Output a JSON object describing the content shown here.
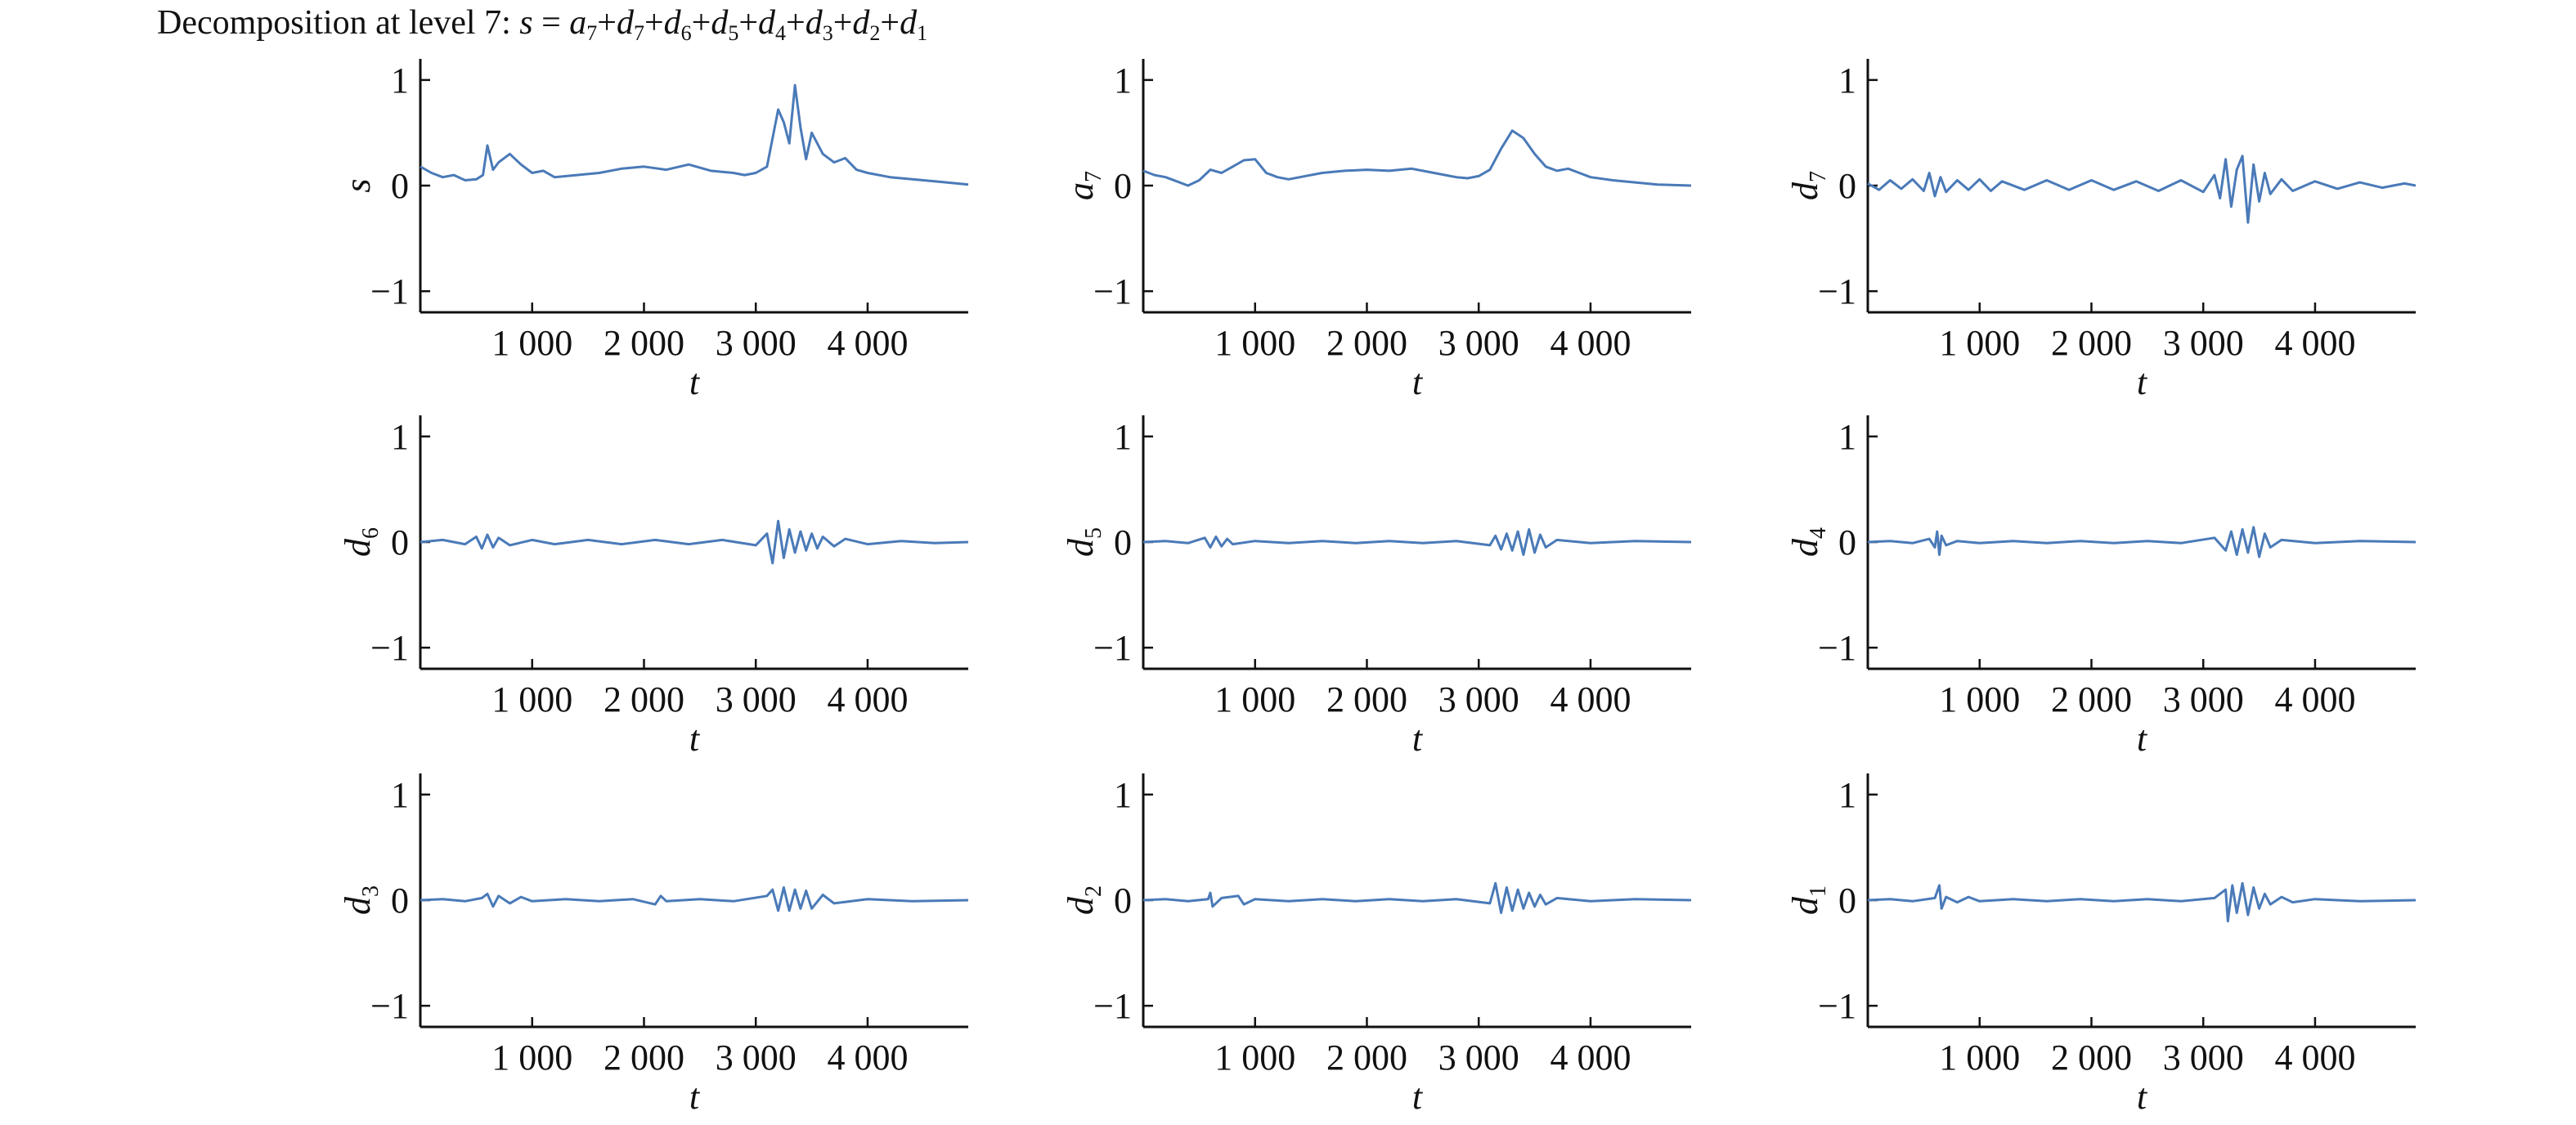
{
  "title": {
    "prefix": "Decomposition at level 7: ",
    "parts": [
      {
        "sym": "s",
        "sub": ""
      },
      {
        "text": " = "
      },
      {
        "sym": "a",
        "sub": "7"
      },
      {
        "text": "+"
      },
      {
        "sym": "d",
        "sub": "7"
      },
      {
        "text": "+"
      },
      {
        "sym": "d",
        "sub": "6"
      },
      {
        "text": "+"
      },
      {
        "sym": "d",
        "sub": "5"
      },
      {
        "text": "+"
      },
      {
        "sym": "d",
        "sub": "4"
      },
      {
        "text": "+"
      },
      {
        "sym": "d",
        "sub": "3"
      },
      {
        "text": "+"
      },
      {
        "sym": "d",
        "sub": "2"
      },
      {
        "text": "+"
      },
      {
        "sym": "d",
        "sub": "1"
      }
    ]
  },
  "colors": {
    "line": "#4a7ab8",
    "axis": "#111111"
  },
  "chart_data": [
    {
      "type": "line",
      "ylabel": "s",
      "ylabel_sub": "",
      "xlabel": "t",
      "xlim": [
        0,
        4900
      ],
      "ylim": [
        -1.2,
        1.2
      ],
      "xticks": [
        1000,
        2000,
        3000,
        4000
      ],
      "xtick_labels": [
        "1 000",
        "2 000",
        "3 000",
        "4 000"
      ],
      "yticks": [
        -1,
        0,
        1
      ],
      "ytick_labels": [
        "−1",
        "0",
        "1"
      ],
      "x": [
        0,
        100,
        200,
        300,
        400,
        500,
        560,
        600,
        650,
        700,
        800,
        900,
        1000,
        1100,
        1200,
        1400,
        1600,
        1800,
        2000,
        2200,
        2400,
        2600,
        2800,
        2900,
        3000,
        3100,
        3200,
        3250,
        3300,
        3350,
        3400,
        3450,
        3500,
        3600,
        3700,
        3800,
        3900,
        4000,
        4200,
        4400,
        4600,
        4800,
        4900
      ],
      "y": [
        0.18,
        0.12,
        0.08,
        0.1,
        0.05,
        0.06,
        0.1,
        0.38,
        0.15,
        0.22,
        0.3,
        0.2,
        0.12,
        0.14,
        0.08,
        0.1,
        0.12,
        0.16,
        0.18,
        0.15,
        0.2,
        0.14,
        0.12,
        0.1,
        0.12,
        0.18,
        0.72,
        0.6,
        0.4,
        0.95,
        0.55,
        0.25,
        0.5,
        0.3,
        0.22,
        0.26,
        0.15,
        0.12,
        0.08,
        0.06,
        0.04,
        0.02,
        0.01
      ]
    },
    {
      "type": "line",
      "ylabel": "a",
      "ylabel_sub": "7",
      "xlabel": "t",
      "xlim": [
        0,
        4900
      ],
      "ylim": [
        -1.2,
        1.2
      ],
      "xticks": [
        1000,
        2000,
        3000,
        4000
      ],
      "xtick_labels": [
        "1 000",
        "2 000",
        "3 000",
        "4 000"
      ],
      "yticks": [
        -1,
        0,
        1
      ],
      "ytick_labels": [
        "−1",
        "0",
        "1"
      ],
      "x": [
        0,
        100,
        200,
        300,
        400,
        500,
        600,
        700,
        800,
        900,
        1000,
        1100,
        1200,
        1300,
        1400,
        1600,
        1800,
        2000,
        2200,
        2400,
        2600,
        2700,
        2800,
        2900,
        3000,
        3100,
        3200,
        3300,
        3400,
        3500,
        3600,
        3700,
        3800,
        3900,
        4000,
        4200,
        4400,
        4600,
        4900
      ],
      "y": [
        0.14,
        0.1,
        0.08,
        0.04,
        0.0,
        0.05,
        0.15,
        0.12,
        0.18,
        0.24,
        0.25,
        0.12,
        0.08,
        0.06,
        0.08,
        0.12,
        0.14,
        0.15,
        0.14,
        0.16,
        0.12,
        0.1,
        0.08,
        0.07,
        0.09,
        0.15,
        0.35,
        0.52,
        0.45,
        0.3,
        0.18,
        0.14,
        0.16,
        0.12,
        0.08,
        0.05,
        0.03,
        0.01,
        0.0
      ]
    },
    {
      "type": "line",
      "ylabel": "d",
      "ylabel_sub": "7",
      "xlabel": "t",
      "xlim": [
        0,
        4900
      ],
      "ylim": [
        -1.2,
        1.2
      ],
      "xticks": [
        1000,
        2000,
        3000,
        4000
      ],
      "xtick_labels": [
        "1 000",
        "2 000",
        "3 000",
        "4 000"
      ],
      "yticks": [
        -1,
        0,
        1
      ],
      "ytick_labels": [
        "−1",
        "0",
        "1"
      ],
      "x": [
        0,
        100,
        200,
        300,
        400,
        500,
        550,
        600,
        650,
        700,
        800,
        900,
        1000,
        1100,
        1200,
        1400,
        1600,
        1800,
        2000,
        2200,
        2400,
        2600,
        2800,
        3000,
        3100,
        3150,
        3200,
        3250,
        3300,
        3350,
        3400,
        3450,
        3500,
        3550,
        3600,
        3700,
        3800,
        4000,
        4200,
        4400,
        4600,
        4800,
        4900
      ],
      "y": [
        0.02,
        -0.04,
        0.05,
        -0.03,
        0.06,
        -0.05,
        0.12,
        -0.1,
        0.08,
        -0.06,
        0.05,
        -0.04,
        0.06,
        -0.05,
        0.04,
        -0.04,
        0.05,
        -0.04,
        0.05,
        -0.04,
        0.04,
        -0.05,
        0.05,
        -0.06,
        0.1,
        -0.12,
        0.25,
        -0.2,
        0.15,
        0.28,
        -0.35,
        0.2,
        -0.15,
        0.12,
        -0.08,
        0.06,
        -0.05,
        0.04,
        -0.03,
        0.03,
        -0.02,
        0.02,
        0.0
      ]
    },
    {
      "type": "line",
      "ylabel": "d",
      "ylabel_sub": "6",
      "xlabel": "t",
      "xlim": [
        0,
        4900
      ],
      "ylim": [
        -1.2,
        1.2
      ],
      "xticks": [
        1000,
        2000,
        3000,
        4000
      ],
      "xtick_labels": [
        "1 000",
        "2 000",
        "3 000",
        "4 000"
      ],
      "yticks": [
        -1,
        0,
        1
      ],
      "ytick_labels": [
        "−1",
        "0",
        "1"
      ],
      "x": [
        0,
        200,
        400,
        500,
        550,
        600,
        650,
        700,
        800,
        1000,
        1200,
        1500,
        1800,
        2100,
        2400,
        2700,
        3000,
        3100,
        3150,
        3200,
        3250,
        3300,
        3350,
        3400,
        3450,
        3500,
        3550,
        3600,
        3700,
        3800,
        4000,
        4300,
        4600,
        4900
      ],
      "y": [
        0.0,
        0.02,
        -0.02,
        0.05,
        -0.06,
        0.07,
        -0.05,
        0.04,
        -0.03,
        0.02,
        -0.02,
        0.02,
        -0.02,
        0.02,
        -0.02,
        0.02,
        -0.03,
        0.08,
        -0.2,
        0.2,
        -0.15,
        0.12,
        -0.1,
        0.1,
        -0.08,
        0.08,
        -0.06,
        0.05,
        -0.04,
        0.03,
        -0.02,
        0.01,
        -0.01,
        0.0
      ]
    },
    {
      "type": "line",
      "ylabel": "d",
      "ylabel_sub": "5",
      "xlabel": "t",
      "xlim": [
        0,
        4900
      ],
      "ylim": [
        -1.2,
        1.2
      ],
      "xticks": [
        1000,
        2000,
        3000,
        4000
      ],
      "xtick_labels": [
        "1 000",
        "2 000",
        "3 000",
        "4 000"
      ],
      "yticks": [
        -1,
        0,
        1
      ],
      "ytick_labels": [
        "−1",
        "0",
        "1"
      ],
      "x": [
        0,
        200,
        400,
        550,
        600,
        650,
        700,
        750,
        800,
        1000,
        1300,
        1600,
        1900,
        2200,
        2500,
        2800,
        3100,
        3150,
        3200,
        3250,
        3300,
        3350,
        3400,
        3450,
        3500,
        3550,
        3600,
        3700,
        4000,
        4400,
        4900
      ],
      "y": [
        0.0,
        0.01,
        -0.01,
        0.04,
        -0.05,
        0.05,
        -0.04,
        0.03,
        -0.02,
        0.01,
        -0.01,
        0.01,
        -0.01,
        0.01,
        -0.01,
        0.01,
        -0.03,
        0.06,
        -0.07,
        0.08,
        -0.08,
        0.1,
        -0.12,
        0.12,
        -0.1,
        0.07,
        -0.05,
        0.02,
        -0.01,
        0.01,
        0.0
      ]
    },
    {
      "type": "line",
      "ylabel": "d",
      "ylabel_sub": "4",
      "xlabel": "t",
      "xlim": [
        0,
        4900
      ],
      "ylim": [
        -1.2,
        1.2
      ],
      "xticks": [
        1000,
        2000,
        3000,
        4000
      ],
      "xtick_labels": [
        "1 000",
        "2 000",
        "3 000",
        "4 000"
      ],
      "yticks": [
        -1,
        0,
        1
      ],
      "ytick_labels": [
        "−1",
        "0",
        "1"
      ],
      "x": [
        0,
        200,
        400,
        550,
        600,
        620,
        640,
        660,
        700,
        800,
        1000,
        1300,
        1600,
        1900,
        2200,
        2500,
        2800,
        3100,
        3200,
        3250,
        3300,
        3350,
        3400,
        3450,
        3500,
        3550,
        3600,
        3700,
        4000,
        4400,
        4900
      ],
      "y": [
        0.0,
        0.01,
        -0.01,
        0.03,
        -0.05,
        0.1,
        -0.12,
        0.06,
        -0.03,
        0.01,
        -0.01,
        0.01,
        -0.01,
        0.01,
        -0.01,
        0.01,
        -0.01,
        0.04,
        -0.08,
        0.1,
        -0.12,
        0.12,
        -0.1,
        0.14,
        -0.14,
        0.08,
        -0.05,
        0.02,
        -0.01,
        0.01,
        0.0
      ]
    },
    {
      "type": "line",
      "ylabel": "d",
      "ylabel_sub": "3",
      "xlabel": "t",
      "xlim": [
        0,
        4900
      ],
      "ylim": [
        -1.2,
        1.2
      ],
      "xticks": [
        1000,
        2000,
        3000,
        4000
      ],
      "xtick_labels": [
        "1 000",
        "2 000",
        "3 000",
        "4 000"
      ],
      "yticks": [
        -1,
        0,
        1
      ],
      "ytick_labels": [
        "−1",
        "0",
        "1"
      ],
      "x": [
        0,
        200,
        400,
        550,
        600,
        650,
        700,
        800,
        900,
        1000,
        1300,
        1600,
        1900,
        2100,
        2150,
        2200,
        2500,
        2800,
        3100,
        3150,
        3200,
        3250,
        3300,
        3350,
        3400,
        3450,
        3500,
        3600,
        3700,
        4000,
        4400,
        4900
      ],
      "y": [
        0.0,
        0.01,
        -0.01,
        0.02,
        0.06,
        -0.06,
        0.04,
        -0.03,
        0.03,
        -0.01,
        0.01,
        -0.01,
        0.01,
        -0.04,
        0.04,
        -0.01,
        0.01,
        -0.01,
        0.04,
        0.1,
        -0.1,
        0.12,
        -0.1,
        0.1,
        -0.08,
        0.09,
        -0.08,
        0.05,
        -0.03,
        0.01,
        -0.01,
        0.0
      ]
    },
    {
      "type": "line",
      "ylabel": "d",
      "ylabel_sub": "2",
      "xlabel": "t",
      "xlim": [
        0,
        4900
      ],
      "ylim": [
        -1.2,
        1.2
      ],
      "xticks": [
        1000,
        2000,
        3000,
        4000
      ],
      "xtick_labels": [
        "1 000",
        "2 000",
        "3 000",
        "4 000"
      ],
      "yticks": [
        -1,
        0,
        1
      ],
      "ytick_labels": [
        "−1",
        "0",
        "1"
      ],
      "x": [
        0,
        200,
        400,
        580,
        600,
        620,
        700,
        850,
        900,
        1000,
        1300,
        1600,
        1900,
        2200,
        2500,
        2800,
        3100,
        3150,
        3200,
        3250,
        3300,
        3350,
        3400,
        3450,
        3500,
        3550,
        3600,
        3700,
        4000,
        4400,
        4900
      ],
      "y": [
        0.0,
        0.01,
        -0.01,
        0.01,
        0.07,
        -0.06,
        0.02,
        0.04,
        -0.04,
        0.01,
        -0.01,
        0.01,
        -0.01,
        0.01,
        -0.01,
        0.01,
        -0.03,
        0.16,
        -0.12,
        0.12,
        -0.1,
        0.1,
        -0.08,
        0.07,
        -0.06,
        0.05,
        -0.04,
        0.02,
        -0.01,
        0.01,
        0.0
      ]
    },
    {
      "type": "line",
      "ylabel": "d",
      "ylabel_sub": "1",
      "xlabel": "t",
      "xlim": [
        0,
        4900
      ],
      "ylim": [
        -1.2,
        1.2
      ],
      "xticks": [
        1000,
        2000,
        3000,
        4000
      ],
      "xtick_labels": [
        "1 000",
        "2 000",
        "3 000",
        "4 000"
      ],
      "yticks": [
        -1,
        0,
        1
      ],
      "ytick_labels": [
        "−1",
        "0",
        "1"
      ],
      "x": [
        0,
        200,
        400,
        600,
        640,
        660,
        700,
        800,
        900,
        1000,
        1300,
        1600,
        1900,
        2200,
        2500,
        2800,
        3100,
        3200,
        3220,
        3260,
        3300,
        3350,
        3400,
        3450,
        3500,
        3550,
        3600,
        3700,
        3800,
        4000,
        4400,
        4900
      ],
      "y": [
        0.0,
        0.01,
        -0.01,
        0.02,
        0.14,
        -0.08,
        0.03,
        -0.02,
        0.03,
        -0.01,
        0.01,
        -0.01,
        0.01,
        -0.01,
        0.01,
        -0.01,
        0.02,
        0.1,
        -0.2,
        0.14,
        -0.12,
        0.16,
        -0.14,
        0.12,
        -0.08,
        0.06,
        -0.04,
        0.03,
        -0.02,
        0.01,
        -0.01,
        0.0
      ]
    }
  ]
}
